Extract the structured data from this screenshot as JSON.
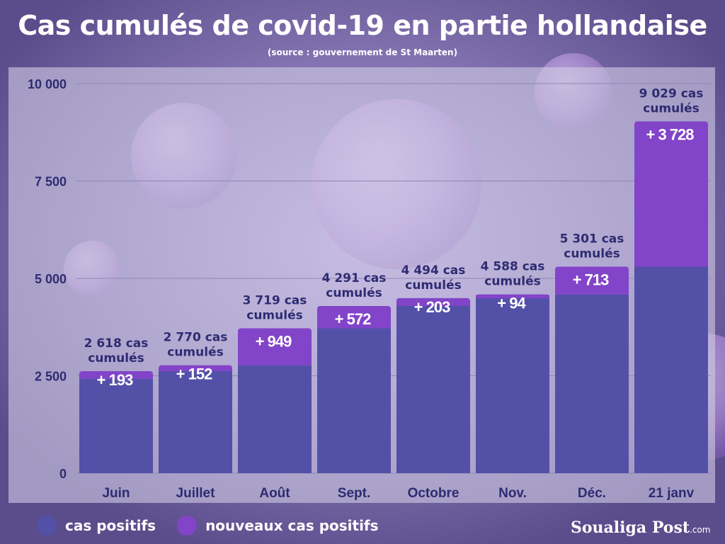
{
  "title": "Cas cumulés de covid-19 en partie hollandaise",
  "subtitle": "(source : gouvernement de St Maarten)",
  "legend": [
    {
      "label": "cas positifs",
      "color": "#5350a8"
    },
    {
      "label": "nouveaux cas positifs",
      "color": "#8244c8"
    }
  ],
  "brand": {
    "name": "Soualiga Post",
    "suffix": ".com"
  },
  "colors": {
    "base": "#5350a8",
    "new": "#8244c8",
    "axis_text": "#2e2b72",
    "label_text": "#2e2b72",
    "panel": "#c9c4dc"
  },
  "chart_data": {
    "type": "bar",
    "stacked": true,
    "categories": [
      "Juin",
      "Juillet",
      "Août",
      "Sept.",
      "Octobre",
      "Nov.",
      "Déc.",
      "21 janv"
    ],
    "ylim": [
      0,
      10000
    ],
    "yticks": [
      0,
      2500,
      5000,
      7500,
      10000
    ],
    "ytick_labels": [
      "0",
      "2 500",
      "5 000",
      "7 500",
      "10 000"
    ],
    "grid": true,
    "legend_position": "bottom-left",
    "series": [
      {
        "name": "cas positifs",
        "values": [
          2425,
          2618,
          2770,
          3719,
          4291,
          4494,
          4588,
          5301
        ]
      },
      {
        "name": "nouveaux cas positifs",
        "values": [
          193,
          152,
          949,
          572,
          203,
          94,
          713,
          3728
        ]
      }
    ],
    "increment_labels": [
      "+ 193",
      "+ 152",
      "+ 949",
      "+ 572",
      "+ 203",
      "+ 94",
      "+ 713",
      "+ 3 728"
    ],
    "total_labels": [
      [
        "2 618 cas",
        "cumulés"
      ],
      [
        "2 770 cas",
        "cumulés"
      ],
      [
        "3  719 cas",
        "cumulés"
      ],
      [
        "4 291 cas",
        "cumulés"
      ],
      [
        "4 494 cas",
        "cumulés"
      ],
      [
        "4 588 cas",
        "cumulés"
      ],
      [
        "5 301 cas",
        "cumulés"
      ],
      [
        "9 029 cas",
        "cumulés"
      ]
    ],
    "totals": [
      2618,
      2770,
      3719,
      4291,
      4494,
      4588,
      5301,
      9029
    ]
  }
}
